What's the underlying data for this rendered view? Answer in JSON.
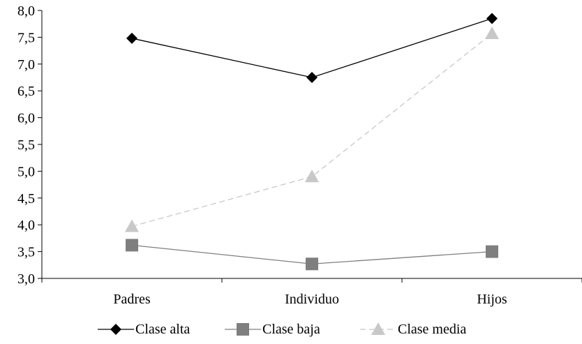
{
  "chart_data": {
    "type": "line",
    "title": "",
    "xlabel": "",
    "ylabel": "",
    "categories": [
      "Padres",
      "Individuo",
      "Hijos"
    ],
    "ylim": [
      3.0,
      8.0
    ],
    "yticks": [
      "3,0",
      "3,5",
      "4,0",
      "4,5",
      "5,0",
      "5,5",
      "6,0",
      "6,5",
      "7,0",
      "7,5",
      "8,0"
    ],
    "grid": false,
    "legend_position": "bottom",
    "series": [
      {
        "name": "Clase alta",
        "values": [
          7.48,
          6.75,
          7.85
        ],
        "color": "#000000",
        "marker": "diamond",
        "dash": false
      },
      {
        "name": "Clase baja",
        "values": [
          3.62,
          3.27,
          3.5
        ],
        "color": "#7f7f7f",
        "marker": "square",
        "dash": false
      },
      {
        "name": "Clase media",
        "values": [
          3.97,
          4.9,
          7.57
        ],
        "color": "#c8c8c8",
        "marker": "triangle",
        "dash": true
      }
    ]
  }
}
